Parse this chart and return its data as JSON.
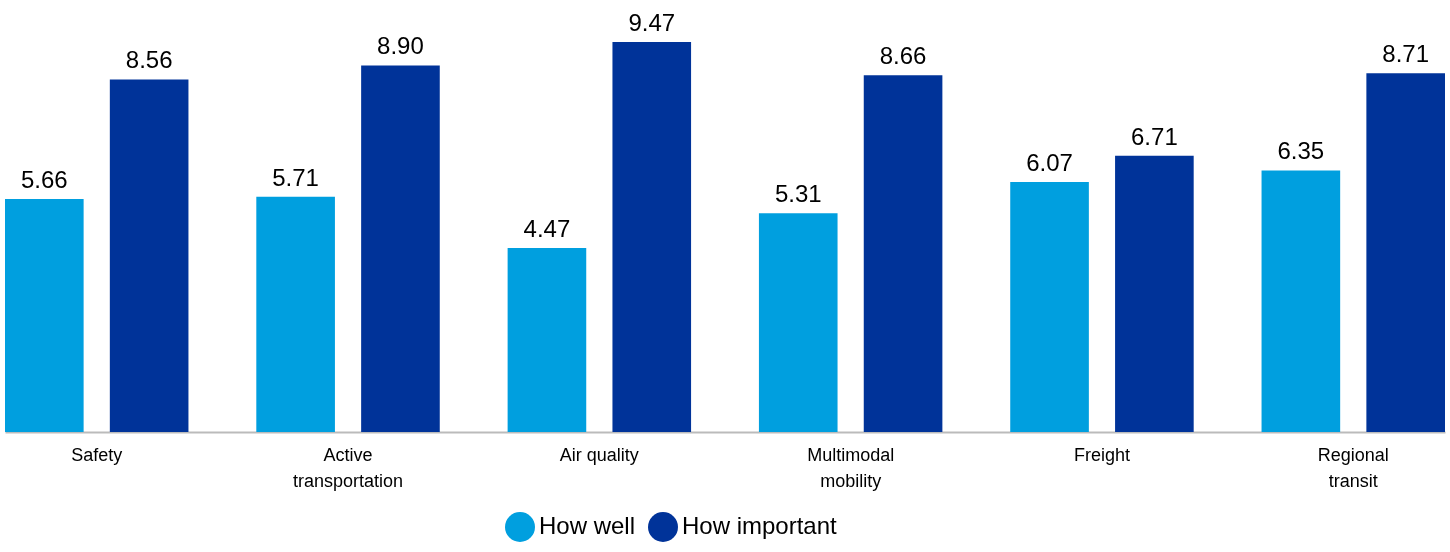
{
  "chart_data": {
    "type": "bar",
    "categories": [
      "Safety",
      "Active transportation",
      "Air quality",
      "Multimodal mobility",
      "Freight",
      "Regional transit"
    ],
    "series": [
      {
        "name": "How well",
        "color": "#009fdf",
        "values": [
          5.66,
          5.71,
          4.47,
          5.31,
          6.07,
          6.35
        ],
        "value_labels": [
          "5.66",
          "5.71",
          "4.47",
          "5.31",
          "6.07",
          "6.35"
        ]
      },
      {
        "name": "How important",
        "color": "#003399",
        "values": [
          8.56,
          8.9,
          9.47,
          8.66,
          6.71,
          8.71
        ],
        "value_labels": [
          "8.56",
          "8.90",
          "9.47",
          "8.66",
          "6.71",
          "8.71"
        ]
      }
    ],
    "grid": false,
    "legend": "bottom",
    "tick_labels": "x"
  }
}
